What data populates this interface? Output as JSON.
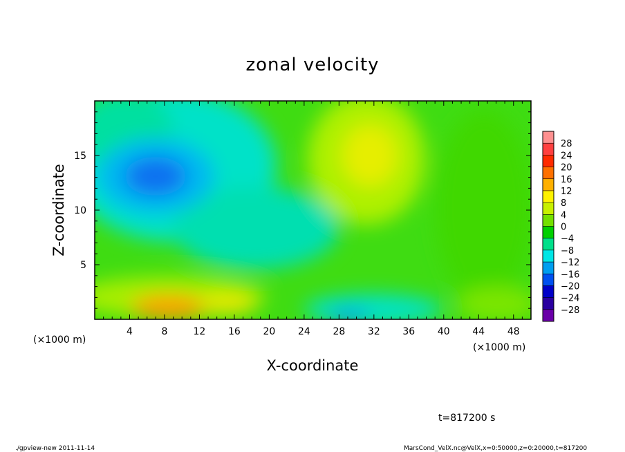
{
  "chart_data": {
    "type": "heatmap",
    "title": "zonal velocity",
    "xlabel": "X-coordinate",
    "ylabel": "Z-coordinate",
    "x_unit": "(×1000 m)",
    "x_unit_right": "(×1000 m)",
    "xlim": [
      0,
      50
    ],
    "ylim": [
      0,
      20
    ],
    "x_ticks": [
      4,
      8,
      12,
      16,
      20,
      24,
      28,
      32,
      36,
      40,
      44,
      48
    ],
    "y_ticks": [
      5,
      10,
      15
    ],
    "colorbar": {
      "levels": [
        28,
        24,
        20,
        16,
        12,
        8,
        4,
        0,
        -4,
        -8,
        -12,
        -16,
        -20,
        -24,
        -28
      ],
      "labels": [
        "28",
        "24",
        "20",
        "16",
        "12",
        "8",
        "4",
        "0",
        "−4",
        "−8",
        "−12",
        "−16",
        "−20",
        "−24",
        "−28"
      ],
      "colors": [
        "#ff9090",
        "#ff4040",
        "#ff2a00",
        "#ff7000",
        "#ffb000",
        "#fff200",
        "#c8f000",
        "#74e000",
        "#00d000",
        "#00e08a",
        "#00e6e6",
        "#009ef0",
        "#0050f0",
        "#0000c8",
        "#2a00a0",
        "#6a00a8"
      ]
    },
    "features": [
      {
        "x": 8,
        "z": 13,
        "value": -16,
        "desc": "negative core"
      },
      {
        "x": 9,
        "z": 1,
        "value": 16,
        "desc": "positive core near surface"
      },
      {
        "x": 31,
        "z": 14.5,
        "value": 10,
        "desc": "positive maximum aloft"
      },
      {
        "x": 30,
        "z": 0.5,
        "value": -16,
        "desc": "negative minimum near surface"
      }
    ],
    "background_value": 0
  },
  "annotations": {
    "time": "t=817200 s",
    "footer_left": "./gpview-new  2011-11-14",
    "footer_right": "MarsCond_VelX.nc@VelX,x=0:50000,z=0:20000,t=817200"
  }
}
